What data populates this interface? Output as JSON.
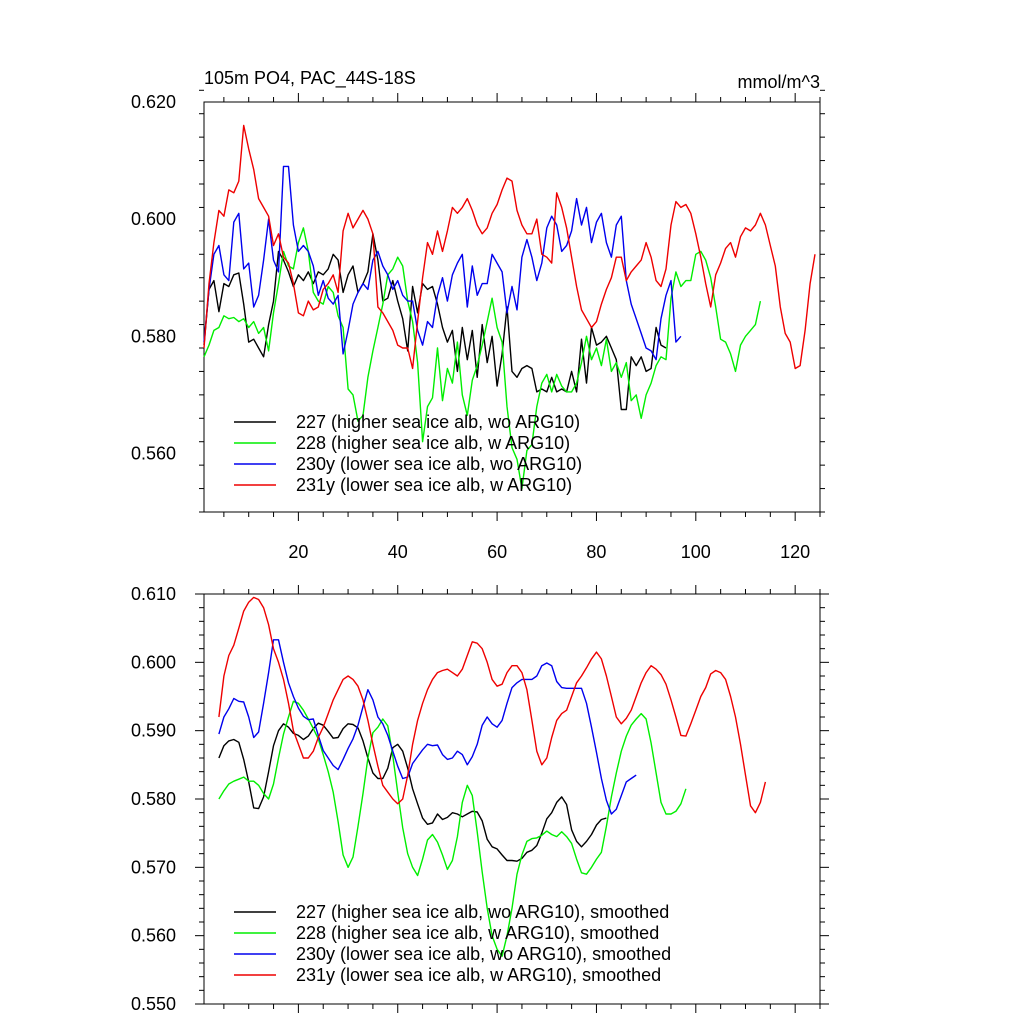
{
  "colors": {
    "s227": "#000000",
    "s228": "#00ee00",
    "s230y": "#0000ee",
    "s231y": "#ee0000",
    "axis": "#000000"
  },
  "chart_data": [
    {
      "type": "line",
      "title": "105m PO4, PAC_44S-18S",
      "units": "mmol/m^3",
      "xlabel": "",
      "ylabel": "",
      "xlim": [
        1,
        125
      ],
      "ylim": [
        0.55,
        0.62
      ],
      "xticks": [
        20,
        40,
        60,
        80,
        100,
        120
      ],
      "xtick_labels": [
        "20",
        "40",
        "60",
        "80",
        "100",
        "120"
      ],
      "yticks": [
        0.56,
        0.58,
        0.6,
        0.62
      ],
      "ytick_labels": [
        "0.560",
        "0.580",
        "0.600",
        "0.620"
      ],
      "legend_position": "bottom-left",
      "series": [
        {
          "key": "s227",
          "name": "227 (higher sea ice alb, wo ARG10)",
          "x_start": 1,
          "values": [
            0.5785,
            0.588,
            0.5895,
            0.5842,
            0.589,
            0.5885,
            0.5905,
            0.5908,
            0.5855,
            0.579,
            0.5795,
            0.578,
            0.5765,
            0.582,
            0.586,
            0.5945,
            0.593,
            0.591,
            0.5885,
            0.5905,
            0.5895,
            0.591,
            0.589,
            0.591,
            0.5905,
            0.5915,
            0.594,
            0.593,
            0.5875,
            0.5905,
            0.592,
            0.5875,
            0.589,
            0.591,
            0.5975,
            0.593,
            0.586,
            0.5865,
            0.5895,
            0.586,
            0.583,
            0.5775,
            0.5885,
            0.584,
            0.589,
            0.588,
            0.5885,
            0.5855,
            0.5815,
            0.579,
            0.581,
            0.574,
            0.5815,
            0.576,
            0.581,
            0.573,
            0.582,
            0.5755,
            0.58,
            0.5715,
            0.577,
            0.585,
            0.574,
            0.573,
            0.5745,
            0.575,
            0.5745,
            0.5705,
            0.571,
            0.5705,
            0.573,
            0.5705,
            0.571,
            0.5705,
            0.574,
            0.5705,
            0.5795,
            0.572,
            0.5815,
            0.5785,
            0.579,
            0.58,
            0.578,
            0.576,
            0.5675,
            0.5675,
            0.5765,
            0.575,
            0.5765,
            0.574,
            0.5745,
            0.5815,
            0.5785,
            0.578
          ]
        },
        {
          "key": "s228",
          "name": "228 (higher sea ice alb, w ARG10)",
          "x_start": 1,
          "values": [
            0.5765,
            0.5785,
            0.581,
            0.5815,
            0.5835,
            0.583,
            0.5832,
            0.5825,
            0.583,
            0.5815,
            0.5825,
            0.5805,
            0.5815,
            0.5775,
            0.584,
            0.589,
            0.5945,
            0.592,
            0.5915,
            0.596,
            0.5985,
            0.5945,
            0.5875,
            0.586,
            0.5855,
            0.5885,
            0.5875,
            0.5835,
            0.5815,
            0.571,
            0.57,
            0.5655,
            0.5665,
            0.573,
            0.5775,
            0.5815,
            0.5855,
            0.5905,
            0.5915,
            0.5935,
            0.592,
            0.586,
            0.5825,
            0.5755,
            0.562,
            0.568,
            0.5695,
            0.578,
            0.569,
            0.5745,
            0.572,
            0.579,
            0.57,
            0.5665,
            0.5725,
            0.575,
            0.5785,
            0.5825,
            0.5865,
            0.5815,
            0.579,
            0.568,
            0.561,
            0.559,
            0.554,
            0.5605,
            0.5615,
            0.568,
            0.572,
            0.5735,
            0.5705,
            0.5735,
            0.5715,
            0.5705,
            0.5705,
            0.572,
            0.5755,
            0.58,
            0.576,
            0.578,
            0.575,
            0.5795,
            0.574,
            0.5755,
            0.573,
            0.5755,
            0.569,
            0.57,
            0.566,
            0.57,
            0.572,
            0.575,
            0.5765,
            0.576,
            0.5865,
            0.591,
            0.5885,
            0.5895,
            0.5895,
            0.594,
            0.5945,
            0.593,
            0.59,
            0.585,
            0.5795,
            0.579,
            0.577,
            0.574,
            0.5785,
            0.58,
            0.581,
            0.582,
            0.586
          ]
        },
        {
          "key": "s230y",
          "name": "230y (lower sea ice alb, wo ARG10)",
          "x_start": 1,
          "values": [
            0.579,
            0.588,
            0.594,
            0.5955,
            0.5905,
            0.5895,
            0.5995,
            0.601,
            0.5915,
            0.5925,
            0.585,
            0.587,
            0.593,
            0.6,
            0.593,
            0.591,
            0.609,
            0.609,
            0.599,
            0.5945,
            0.5955,
            0.5945,
            0.592,
            0.587,
            0.5895,
            0.5865,
            0.5855,
            0.587,
            0.577,
            0.581,
            0.5855,
            0.5875,
            0.589,
            0.588,
            0.593,
            0.5945,
            0.592,
            0.5905,
            0.588,
            0.5895,
            0.587,
            0.586,
            0.586,
            0.581,
            0.5785,
            0.5825,
            0.5815,
            0.587,
            0.59,
            0.586,
            0.5905,
            0.5925,
            0.594,
            0.585,
            0.592,
            0.587,
            0.589,
            0.589,
            0.594,
            0.5925,
            0.591,
            0.584,
            0.5885,
            0.5845,
            0.5935,
            0.5965,
            0.5935,
            0.5895,
            0.5925,
            0.5985,
            0.6005,
            0.599,
            0.5945,
            0.5955,
            0.598,
            0.6035,
            0.599,
            0.602,
            0.596,
            0.5995,
            0.601,
            0.596,
            0.5935,
            0.599,
            0.6005,
            0.5895,
            0.5855,
            0.583,
            0.5805,
            0.578,
            0.5775,
            0.576,
            0.583,
            0.587,
            0.5895,
            0.579,
            0.58
          ]
        },
        {
          "key": "s231y",
          "name": "231y (lower sea ice alb, w ARG10)",
          "x_start": 1,
          "values": [
            0.578,
            0.589,
            0.596,
            0.6015,
            0.6005,
            0.605,
            0.6045,
            0.6065,
            0.616,
            0.612,
            0.6085,
            0.6035,
            0.602,
            0.6005,
            0.5955,
            0.5975,
            0.5935,
            0.5925,
            0.589,
            0.584,
            0.5835,
            0.586,
            0.5845,
            0.585,
            0.588,
            0.589,
            0.5905,
            0.5875,
            0.598,
            0.601,
            0.5985,
            0.6,
            0.6015,
            0.6,
            0.5975,
            0.585,
            0.584,
            0.5825,
            0.581,
            0.5785,
            0.578,
            0.578,
            0.5745,
            0.5825,
            0.59,
            0.596,
            0.594,
            0.598,
            0.5945,
            0.598,
            0.602,
            0.601,
            0.602,
            0.6035,
            0.6015,
            0.599,
            0.5975,
            0.5985,
            0.601,
            0.6025,
            0.605,
            0.607,
            0.6065,
            0.6015,
            0.599,
            0.5975,
            0.5975,
            0.6,
            0.594,
            0.5935,
            0.5925,
            0.6045,
            0.602,
            0.5985,
            0.5935,
            0.5885,
            0.5845,
            0.583,
            0.5815,
            0.5825,
            0.5855,
            0.588,
            0.59,
            0.5935,
            0.5935,
            0.5895,
            0.591,
            0.592,
            0.593,
            0.596,
            0.5935,
            0.5895,
            0.5885,
            0.5915,
            0.599,
            0.603,
            0.602,
            0.6025,
            0.601,
            0.5975,
            0.5935,
            0.589,
            0.585,
            0.5905,
            0.5925,
            0.595,
            0.596,
            0.5935,
            0.597,
            0.5985,
            0.598,
            0.599,
            0.601,
            0.599,
            0.5955,
            0.592,
            0.585,
            0.5805,
            0.579,
            0.5745,
            0.575,
            0.581,
            0.589,
            0.594
          ]
        }
      ]
    },
    {
      "type": "line",
      "title": "",
      "xlabel": "",
      "ylabel": "",
      "xlim": [
        1,
        125
      ],
      "ylim": [
        0.55,
        0.61
      ],
      "xticks": [
        20,
        40,
        60,
        80,
        100,
        120
      ],
      "xtick_labels": [],
      "yticks": [
        0.55,
        0.56,
        0.57,
        0.58,
        0.59,
        0.6,
        0.61
      ],
      "ytick_labels": [
        "0.550",
        "0.560",
        "0.570",
        "0.580",
        "0.590",
        "0.600",
        "0.610"
      ],
      "legend_position": "bottom-left",
      "series": [
        {
          "key": "s227",
          "name": "227 (higher sea ice alb, wo ARG10), smoothed",
          "x_start": 4,
          "values": [
            0.586,
            0.5878,
            0.5885,
            0.5887,
            0.5883,
            0.5858,
            0.5825,
            0.5787,
            0.5786,
            0.5803,
            0.584,
            0.5878,
            0.59,
            0.591,
            0.5905,
            0.5896,
            0.5893,
            0.5887,
            0.5892,
            0.5903,
            0.5911,
            0.5908,
            0.5899,
            0.5889,
            0.589,
            0.5903,
            0.591,
            0.5909,
            0.5904,
            0.5885,
            0.586,
            0.5838,
            0.583,
            0.583,
            0.5845,
            0.5875,
            0.588,
            0.587,
            0.5845,
            0.5815,
            0.5793,
            0.5772,
            0.5763,
            0.5765,
            0.5778,
            0.577,
            0.5773,
            0.578,
            0.5778,
            0.5774,
            0.5778,
            0.5782,
            0.5781,
            0.5768,
            0.5741,
            0.573,
            0.5727,
            0.5718,
            0.571,
            0.571,
            0.5709,
            0.5713,
            0.5722,
            0.5725,
            0.5732,
            0.575,
            0.5771,
            0.578,
            0.5795,
            0.5803,
            0.5792,
            0.5755,
            0.5738,
            0.573,
            0.5738,
            0.5748,
            0.5762,
            0.577,
            0.5772
          ]
        },
        {
          "key": "s228",
          "name": "228 (higher sea ice alb, w ARG10), smoothed",
          "x_start": 4,
          "values": [
            0.58,
            0.5812,
            0.5822,
            0.5826,
            0.5829,
            0.5832,
            0.5826,
            0.5826,
            0.582,
            0.5808,
            0.58,
            0.5822,
            0.586,
            0.5895,
            0.592,
            0.5943,
            0.594,
            0.593,
            0.5917,
            0.5903,
            0.5888,
            0.5865,
            0.584,
            0.581,
            0.5767,
            0.5718,
            0.57,
            0.5715,
            0.576,
            0.5808,
            0.586,
            0.5897,
            0.5905,
            0.5917,
            0.5907,
            0.5863,
            0.581,
            0.5758,
            0.572,
            0.57,
            0.5688,
            0.5712,
            0.574,
            0.5748,
            0.5737,
            0.5718,
            0.5697,
            0.571,
            0.5745,
            0.5795,
            0.582,
            0.5805,
            0.5752,
            0.5693,
            0.564,
            0.56,
            0.558,
            0.557,
            0.56,
            0.564,
            0.569,
            0.5718,
            0.5738,
            0.5742,
            0.5743,
            0.5747,
            0.5753,
            0.5748,
            0.5745,
            0.5752,
            0.5745,
            0.5735,
            0.5712,
            0.5692,
            0.569,
            0.57,
            0.5712,
            0.5722,
            0.576,
            0.5803,
            0.5838,
            0.587,
            0.5892,
            0.5908,
            0.5917,
            0.5925,
            0.5917,
            0.5882,
            0.5838,
            0.5795,
            0.5778,
            0.5778,
            0.5782,
            0.5793,
            0.5815
          ]
        },
        {
          "key": "s230y",
          "name": "230y (lower sea ice alb, wo ARG10), smoothed",
          "x_start": 4,
          "values": [
            0.5895,
            0.592,
            0.5932,
            0.5947,
            0.5943,
            0.5942,
            0.592,
            0.589,
            0.5898,
            0.594,
            0.5985,
            0.6033,
            0.6033,
            0.6,
            0.597,
            0.595,
            0.5933,
            0.5921,
            0.5916,
            0.5917,
            0.5893,
            0.5871,
            0.586,
            0.5849,
            0.5843,
            0.5858,
            0.5874,
            0.5888,
            0.5908,
            0.5935,
            0.596,
            0.5945,
            0.592,
            0.591,
            0.5893,
            0.587,
            0.5848,
            0.583,
            0.5832,
            0.5852,
            0.5862,
            0.5872,
            0.588,
            0.5878,
            0.5879,
            0.5865,
            0.5858,
            0.586,
            0.587,
            0.5865,
            0.585,
            0.5862,
            0.588,
            0.5908,
            0.592,
            0.591,
            0.5905,
            0.5915,
            0.594,
            0.5963,
            0.597,
            0.5975,
            0.5975,
            0.5975,
            0.598,
            0.5995,
            0.5999,
            0.5995,
            0.5972,
            0.5963,
            0.5962,
            0.5962,
            0.5962,
            0.5962,
            0.594,
            0.5905,
            0.5868,
            0.583,
            0.5798,
            0.5778,
            0.5785,
            0.5805,
            0.5825,
            0.583,
            0.5835
          ]
        },
        {
          "key": "s231y",
          "name": "231y (lower sea ice alb, w ARG10), smoothed",
          "x_start": 4,
          "values": [
            0.592,
            0.598,
            0.601,
            0.6025,
            0.605,
            0.6075,
            0.6088,
            0.6095,
            0.6092,
            0.608,
            0.6055,
            0.602,
            0.6,
            0.5975,
            0.594,
            0.59,
            0.588,
            0.586,
            0.586,
            0.587,
            0.589,
            0.5905,
            0.5925,
            0.5945,
            0.596,
            0.5975,
            0.598,
            0.5975,
            0.5965,
            0.5945,
            0.5915,
            0.588,
            0.5848,
            0.582,
            0.581,
            0.58,
            0.5793,
            0.58,
            0.5835,
            0.588,
            0.5915,
            0.594,
            0.596,
            0.5975,
            0.5985,
            0.5988,
            0.599,
            0.5985,
            0.598,
            0.599,
            0.601,
            0.603,
            0.6028,
            0.602,
            0.6,
            0.5975,
            0.5965,
            0.5968,
            0.5985,
            0.5995,
            0.5995,
            0.5985,
            0.596,
            0.5915,
            0.587,
            0.585,
            0.586,
            0.589,
            0.5915,
            0.5925,
            0.593,
            0.595,
            0.597,
            0.598,
            0.5992,
            0.6005,
            0.6015,
            0.6005,
            0.598,
            0.595,
            0.592,
            0.591,
            0.5918,
            0.593,
            0.595,
            0.597,
            0.5985,
            0.5995,
            0.599,
            0.5982,
            0.5968,
            0.5945,
            0.592,
            0.5893,
            0.5892,
            0.591,
            0.593,
            0.595,
            0.5963,
            0.5983,
            0.5988,
            0.5985,
            0.5975,
            0.595,
            0.592,
            0.588,
            0.5835,
            0.579,
            0.578,
            0.5795,
            0.5825
          ]
        }
      ]
    }
  ]
}
